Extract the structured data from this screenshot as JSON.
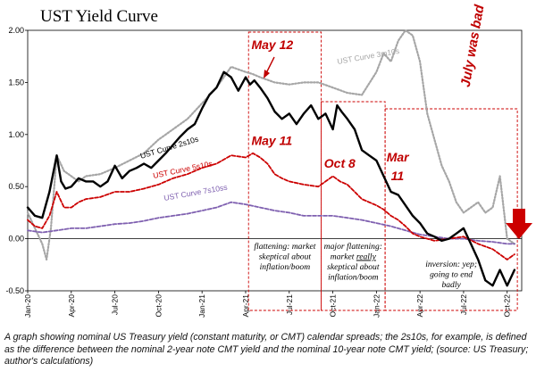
{
  "caption": "A graph showing nominal US Treasury yield (constant maturity, or CMT) calendar spreads; the 2s10s, for example, is defined as the difference between the nominal 2-year note CMT yield and the nominal 10-year note CMT yield; (source: US Treasury; author's calculations)",
  "chart_data": {
    "type": "line",
    "title": "UST Yield Curve",
    "xlabel": "",
    "ylabel": "",
    "ylim": [
      -0.5,
      2.0
    ],
    "yticks": [
      "2.00",
      "1.50",
      "1.00",
      "0.50",
      "0.00",
      "-0.50"
    ],
    "xticks": [
      "Jan-20",
      "Apr-20",
      "Jul-20",
      "Oct-20",
      "Jan-21",
      "Apr-21",
      "Jul-21",
      "Oct-21",
      "Jan-22",
      "Apr-22",
      "Jul-22",
      "Oct-22"
    ],
    "grid": false,
    "colors": {
      "s2s10": "#000000",
      "s5s10": "#cc0000",
      "s7s10": "#7f60b0",
      "s3m10": "#a6a6a6",
      "accent": "#cc0000"
    },
    "series": [
      {
        "name": "UST Curve 2s10s",
        "style": "solid",
        "x": [
          0,
          0.5,
          1,
          1.5,
          2,
          2.3,
          2.6,
          3,
          3.5,
          4,
          4.5,
          5,
          5.5,
          6,
          6.5,
          7,
          7.5,
          8,
          8.5,
          9,
          9.5,
          10,
          10.5,
          11,
          11.5,
          12,
          12.5,
          13,
          13.5,
          14,
          14.5,
          15,
          15.3,
          15.6,
          16,
          16.5,
          17,
          17.5,
          18,
          18.5,
          19,
          19.5,
          20,
          20.5,
          21,
          21.3,
          21.6,
          22,
          22.5,
          23,
          23.5,
          24,
          24.5,
          25,
          25.5,
          26,
          26.5,
          27,
          27.5,
          28,
          28.5,
          29,
          29.5,
          30,
          30.5,
          31,
          31.5,
          32,
          32.5,
          33,
          33.5
        ],
        "values": [
          0.3,
          0.22,
          0.2,
          0.45,
          0.8,
          0.55,
          0.48,
          0.5,
          0.58,
          0.55,
          0.55,
          0.5,
          0.55,
          0.7,
          0.58,
          0.65,
          0.68,
          0.72,
          0.68,
          0.75,
          0.82,
          0.9,
          0.98,
          1.05,
          1.1,
          1.25,
          1.38,
          1.45,
          1.6,
          1.55,
          1.42,
          1.55,
          1.48,
          1.52,
          1.45,
          1.35,
          1.22,
          1.15,
          1.2,
          1.1,
          1.2,
          1.28,
          1.15,
          1.2,
          1.05,
          1.28,
          1.22,
          1.15,
          1.05,
          0.85,
          0.8,
          0.75,
          0.6,
          0.45,
          0.42,
          0.32,
          0.22,
          0.15,
          0.05,
          0.02,
          -0.02,
          0.0,
          0.05,
          0.1,
          -0.05,
          -0.2,
          -0.4,
          -0.45,
          -0.3,
          -0.45,
          -0.3
        ]
      },
      {
        "name": "UST Curve 5s10s",
        "style": "dashed",
        "x": [
          0,
          0.5,
          1,
          1.5,
          2,
          2.5,
          3,
          3.5,
          4,
          5,
          6,
          7,
          8,
          9,
          10,
          11,
          12,
          13,
          14,
          15,
          15.5,
          16,
          16.5,
          17,
          17.5,
          18,
          19,
          20,
          20.5,
          21,
          21.5,
          22,
          22.5,
          23,
          23.5,
          24,
          24.5,
          25,
          25.5,
          26,
          26.5,
          27,
          28,
          29,
          30,
          31,
          32,
          33,
          33.5
        ],
        "values": [
          0.18,
          0.12,
          0.1,
          0.22,
          0.45,
          0.3,
          0.3,
          0.35,
          0.38,
          0.4,
          0.45,
          0.45,
          0.48,
          0.52,
          0.58,
          0.62,
          0.68,
          0.72,
          0.8,
          0.78,
          0.82,
          0.78,
          0.72,
          0.62,
          0.58,
          0.55,
          0.52,
          0.5,
          0.55,
          0.6,
          0.55,
          0.52,
          0.45,
          0.38,
          0.35,
          0.32,
          0.28,
          0.22,
          0.18,
          0.12,
          0.05,
          0.02,
          -0.02,
          0.0,
          0.02,
          -0.05,
          -0.1,
          -0.2,
          -0.15
        ]
      },
      {
        "name": "UST Curve 7s10ss",
        "style": "dashed",
        "x": [
          0,
          1,
          2,
          3,
          4,
          5,
          6,
          7,
          8,
          9,
          10,
          11,
          12,
          13,
          14,
          15,
          16,
          17,
          18,
          19,
          20,
          21,
          22,
          23,
          24,
          25,
          26,
          27,
          28,
          29,
          30,
          31,
          32,
          33,
          33.5
        ],
        "values": [
          0.08,
          0.06,
          0.08,
          0.1,
          0.1,
          0.12,
          0.14,
          0.15,
          0.17,
          0.2,
          0.22,
          0.24,
          0.27,
          0.3,
          0.35,
          0.33,
          0.3,
          0.27,
          0.25,
          0.22,
          0.22,
          0.22,
          0.2,
          0.18,
          0.15,
          0.12,
          0.08,
          0.04,
          0.02,
          0.0,
          0.0,
          -0.02,
          -0.03,
          -0.05,
          -0.05
        ]
      },
      {
        "name": "UST Curve 3m10s",
        "style": "dotted",
        "x": [
          0,
          0.5,
          1,
          1.3,
          1.6,
          2,
          2.5,
          3,
          3.5,
          4,
          5,
          6,
          7,
          8,
          9,
          10,
          11,
          12,
          13,
          14,
          15,
          15.5,
          16,
          17,
          18,
          19,
          20,
          21,
          22,
          23,
          24,
          24.5,
          25,
          25.5,
          26,
          26.5,
          27,
          27.5,
          28,
          28.5,
          29,
          29.5,
          30,
          30.5,
          31,
          31.5,
          32,
          32.5,
          33,
          33.5
        ],
        "values": [
          0.25,
          0.1,
          -0.05,
          -0.2,
          0.1,
          0.8,
          0.65,
          0.6,
          0.55,
          0.6,
          0.62,
          0.68,
          0.75,
          0.82,
          0.95,
          1.05,
          1.15,
          1.3,
          1.45,
          1.65,
          1.6,
          1.58,
          1.55,
          1.5,
          1.48,
          1.5,
          1.5,
          1.45,
          1.4,
          1.38,
          1.6,
          1.78,
          1.7,
          1.9,
          2.0,
          1.95,
          1.7,
          1.2,
          0.95,
          0.7,
          0.55,
          0.35,
          0.25,
          0.3,
          0.35,
          0.25,
          0.3,
          0.6,
          0.0,
          -0.05
        ]
      }
    ],
    "annotations": [
      {
        "text": "May 12",
        "x": 15.4,
        "y": 1.82
      },
      {
        "text": "May 11",
        "x": 15.4,
        "y": 0.9
      },
      {
        "text": "Oct 8",
        "x": 20.4,
        "y": 0.68
      },
      {
        "text": "Mar",
        "x": 24.7,
        "y": 0.74
      },
      {
        "text": "11",
        "x": 25.0,
        "y": 0.56
      },
      {
        "text": "July was bad",
        "x": 30.4,
        "y": 1.45
      }
    ],
    "regions": [
      {
        "x0": 15.2,
        "x1": 20.2,
        "lines": [
          "flattening: market",
          "skeptical about",
          "inflation/boom"
        ]
      },
      {
        "x0": 20.2,
        "x1": 24.6,
        "lines": [
          "major flattening:",
          "market really",
          "skeptical about",
          "inflation/boom"
        ]
      },
      {
        "x0": 24.6,
        "x1": 33.7,
        "lines": [
          "inversion: yep;",
          "going to end",
          "badly"
        ]
      }
    ]
  }
}
